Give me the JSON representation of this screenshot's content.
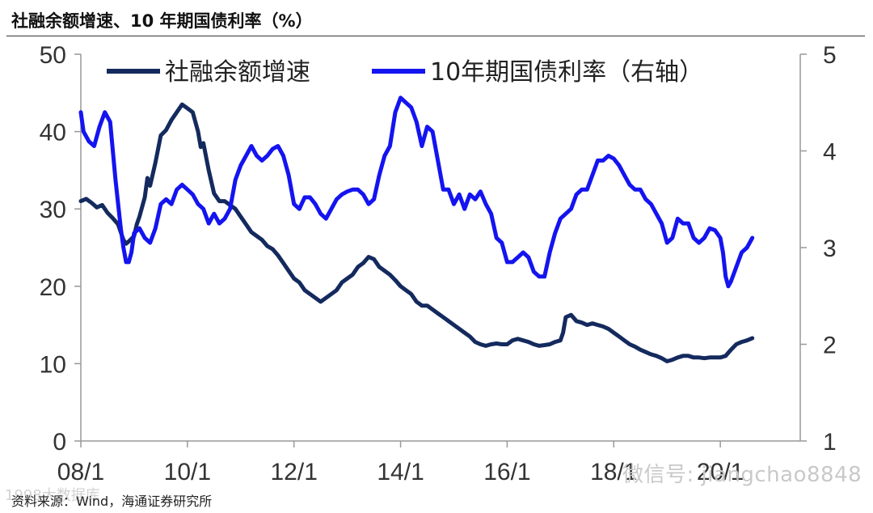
{
  "title": "社融余额增速、10 年期国债利率（%）",
  "source": "资料来源：Wind，海通证券研究所",
  "watermark": "微信号: jiangchao8848",
  "watermark_left": "1998大数据库",
  "colors": {
    "series1": "#142a5e",
    "series2": "#1414f0",
    "axis": "#999999"
  },
  "chart_data": {
    "type": "line",
    "title": "社融余额增速、10 年期国债利率（%）",
    "xlabel": "",
    "ylabel": "",
    "x_range": [
      2008.0,
      2021.5
    ],
    "x_ticks": [
      {
        "label": "08/1",
        "x": 2008.0
      },
      {
        "label": "10/1",
        "x": 2010.0
      },
      {
        "label": "12/1",
        "x": 2012.0
      },
      {
        "label": "14/1",
        "x": 2014.0
      },
      {
        "label": "16/1",
        "x": 2016.0
      },
      {
        "label": "18/1",
        "x": 2018.0
      },
      {
        "label": "20/1",
        "x": 2020.0
      }
    ],
    "ylim_left": [
      0,
      50
    ],
    "yticks_left": [
      0,
      10,
      20,
      30,
      40,
      50
    ],
    "ylim_right": [
      1,
      5
    ],
    "yticks_right": [
      1,
      2,
      3,
      4,
      5
    ],
    "legend_position": "top",
    "grid": false,
    "series": [
      {
        "name": "社融余额增速",
        "axis": "left",
        "points": [
          [
            2008.0,
            31.0
          ],
          [
            2008.1,
            31.3
          ],
          [
            2008.2,
            30.8
          ],
          [
            2008.3,
            30.2
          ],
          [
            2008.4,
            30.5
          ],
          [
            2008.5,
            29.5
          ],
          [
            2008.6,
            28.8
          ],
          [
            2008.7,
            28.0
          ],
          [
            2008.75,
            27.0
          ],
          [
            2008.8,
            26.0
          ],
          [
            2008.85,
            25.5
          ],
          [
            2008.9,
            25.8
          ],
          [
            2009.0,
            26.5
          ],
          [
            2009.05,
            28.0
          ],
          [
            2009.1,
            29.0
          ],
          [
            2009.2,
            31.5
          ],
          [
            2009.25,
            34.0
          ],
          [
            2009.3,
            33.0
          ],
          [
            2009.4,
            36.0
          ],
          [
            2009.5,
            39.5
          ],
          [
            2009.6,
            40.2
          ],
          [
            2009.7,
            41.5
          ],
          [
            2009.8,
            42.5
          ],
          [
            2009.9,
            43.5
          ],
          [
            2010.0,
            43.0
          ],
          [
            2010.1,
            42.5
          ],
          [
            2010.2,
            40.0
          ],
          [
            2010.25,
            38.0
          ],
          [
            2010.3,
            38.5
          ],
          [
            2010.4,
            35.0
          ],
          [
            2010.5,
            32.0
          ],
          [
            2010.6,
            31.0
          ],
          [
            2010.7,
            31.0
          ],
          [
            2010.8,
            30.5
          ],
          [
            2010.9,
            30.0
          ],
          [
            2011.0,
            29.0
          ],
          [
            2011.1,
            28.0
          ],
          [
            2011.2,
            27.0
          ],
          [
            2011.3,
            26.5
          ],
          [
            2011.4,
            26.0
          ],
          [
            2011.5,
            25.2
          ],
          [
            2011.6,
            24.8
          ],
          [
            2011.7,
            24.0
          ],
          [
            2011.8,
            23.0
          ],
          [
            2011.9,
            22.0
          ],
          [
            2012.0,
            21.0
          ],
          [
            2012.1,
            20.5
          ],
          [
            2012.2,
            19.5
          ],
          [
            2012.3,
            19.0
          ],
          [
            2012.4,
            18.5
          ],
          [
            2012.5,
            18.0
          ],
          [
            2012.6,
            18.5
          ],
          [
            2012.7,
            19.0
          ],
          [
            2012.8,
            19.5
          ],
          [
            2012.9,
            20.5
          ],
          [
            2013.0,
            21.0
          ],
          [
            2013.1,
            21.5
          ],
          [
            2013.2,
            22.5
          ],
          [
            2013.3,
            23.0
          ],
          [
            2013.4,
            23.8
          ],
          [
            2013.5,
            23.5
          ],
          [
            2013.6,
            22.5
          ],
          [
            2013.7,
            22.0
          ],
          [
            2013.8,
            21.5
          ],
          [
            2013.9,
            20.8
          ],
          [
            2014.0,
            20.0
          ],
          [
            2014.1,
            19.5
          ],
          [
            2014.2,
            19.0
          ],
          [
            2014.3,
            18.0
          ],
          [
            2014.4,
            17.5
          ],
          [
            2014.5,
            17.5
          ],
          [
            2014.6,
            17.0
          ],
          [
            2014.7,
            16.5
          ],
          [
            2014.8,
            16.0
          ],
          [
            2014.9,
            15.5
          ],
          [
            2015.0,
            15.0
          ],
          [
            2015.1,
            14.5
          ],
          [
            2015.2,
            14.0
          ],
          [
            2015.3,
            13.5
          ],
          [
            2015.4,
            12.8
          ],
          [
            2015.5,
            12.5
          ],
          [
            2015.6,
            12.3
          ],
          [
            2015.7,
            12.5
          ],
          [
            2015.8,
            12.6
          ],
          [
            2015.9,
            12.5
          ],
          [
            2016.0,
            12.5
          ],
          [
            2016.1,
            13.0
          ],
          [
            2016.2,
            13.2
          ],
          [
            2016.3,
            13.0
          ],
          [
            2016.4,
            12.8
          ],
          [
            2016.5,
            12.5
          ],
          [
            2016.6,
            12.3
          ],
          [
            2016.7,
            12.4
          ],
          [
            2016.8,
            12.5
          ],
          [
            2016.9,
            12.8
          ],
          [
            2017.0,
            13.0
          ],
          [
            2017.05,
            14.0
          ],
          [
            2017.1,
            16.0
          ],
          [
            2017.2,
            16.3
          ],
          [
            2017.3,
            15.5
          ],
          [
            2017.4,
            15.3
          ],
          [
            2017.5,
            15.0
          ],
          [
            2017.6,
            15.2
          ],
          [
            2017.7,
            15.0
          ],
          [
            2017.8,
            14.8
          ],
          [
            2017.9,
            14.5
          ],
          [
            2018.0,
            14.0
          ],
          [
            2018.1,
            13.5
          ],
          [
            2018.2,
            13.0
          ],
          [
            2018.3,
            12.5
          ],
          [
            2018.4,
            12.2
          ],
          [
            2018.5,
            11.8
          ],
          [
            2018.6,
            11.5
          ],
          [
            2018.7,
            11.2
          ],
          [
            2018.8,
            11.0
          ],
          [
            2018.9,
            10.7
          ],
          [
            2019.0,
            10.3
          ],
          [
            2019.1,
            10.5
          ],
          [
            2019.2,
            10.8
          ],
          [
            2019.3,
            11.0
          ],
          [
            2019.4,
            11.0
          ],
          [
            2019.5,
            10.8
          ],
          [
            2019.6,
            10.8
          ],
          [
            2019.7,
            10.7
          ],
          [
            2019.8,
            10.8
          ],
          [
            2019.9,
            10.8
          ],
          [
            2020.0,
            10.8
          ],
          [
            2020.1,
            11.0
          ],
          [
            2020.2,
            11.8
          ],
          [
            2020.3,
            12.5
          ],
          [
            2020.4,
            12.8
          ],
          [
            2020.5,
            13.0
          ],
          [
            2020.6,
            13.3
          ]
        ]
      },
      {
        "name": "10年期国债利率（右轴）",
        "axis": "right",
        "points": [
          [
            2008.0,
            4.4
          ],
          [
            2008.05,
            4.2
          ],
          [
            2008.15,
            4.1
          ],
          [
            2008.25,
            4.05
          ],
          [
            2008.35,
            4.25
          ],
          [
            2008.45,
            4.4
          ],
          [
            2008.55,
            4.3
          ],
          [
            2008.65,
            3.7
          ],
          [
            2008.75,
            3.2
          ],
          [
            2008.8,
            3.0
          ],
          [
            2008.85,
            2.85
          ],
          [
            2008.9,
            2.85
          ],
          [
            2008.95,
            2.95
          ],
          [
            2009.0,
            3.15
          ],
          [
            2009.1,
            3.2
          ],
          [
            2009.2,
            3.1
          ],
          [
            2009.3,
            3.05
          ],
          [
            2009.4,
            3.2
          ],
          [
            2009.5,
            3.45
          ],
          [
            2009.6,
            3.5
          ],
          [
            2009.7,
            3.45
          ],
          [
            2009.8,
            3.6
          ],
          [
            2009.9,
            3.65
          ],
          [
            2010.0,
            3.6
          ],
          [
            2010.1,
            3.55
          ],
          [
            2010.2,
            3.45
          ],
          [
            2010.3,
            3.4
          ],
          [
            2010.4,
            3.25
          ],
          [
            2010.5,
            3.35
          ],
          [
            2010.6,
            3.25
          ],
          [
            2010.7,
            3.3
          ],
          [
            2010.8,
            3.4
          ],
          [
            2010.9,
            3.7
          ],
          [
            2011.0,
            3.85
          ],
          [
            2011.1,
            3.95
          ],
          [
            2011.2,
            4.05
          ],
          [
            2011.3,
            3.95
          ],
          [
            2011.4,
            3.9
          ],
          [
            2011.5,
            3.95
          ],
          [
            2011.6,
            4.02
          ],
          [
            2011.7,
            4.05
          ],
          [
            2011.8,
            3.95
          ],
          [
            2011.9,
            3.75
          ],
          [
            2012.0,
            3.45
          ],
          [
            2012.1,
            3.4
          ],
          [
            2012.2,
            3.52
          ],
          [
            2012.3,
            3.52
          ],
          [
            2012.4,
            3.45
          ],
          [
            2012.5,
            3.35
          ],
          [
            2012.6,
            3.3
          ],
          [
            2012.7,
            3.4
          ],
          [
            2012.8,
            3.5
          ],
          [
            2012.9,
            3.55
          ],
          [
            2013.0,
            3.58
          ],
          [
            2013.1,
            3.6
          ],
          [
            2013.2,
            3.6
          ],
          [
            2013.3,
            3.55
          ],
          [
            2013.4,
            3.45
          ],
          [
            2013.5,
            3.5
          ],
          [
            2013.6,
            3.75
          ],
          [
            2013.7,
            3.95
          ],
          [
            2013.8,
            4.05
          ],
          [
            2013.9,
            4.4
          ],
          [
            2014.0,
            4.55
          ],
          [
            2014.1,
            4.5
          ],
          [
            2014.2,
            4.45
          ],
          [
            2014.3,
            4.3
          ],
          [
            2014.4,
            4.05
          ],
          [
            2014.5,
            4.25
          ],
          [
            2014.6,
            4.2
          ],
          [
            2014.7,
            3.9
          ],
          [
            2014.8,
            3.6
          ],
          [
            2014.9,
            3.6
          ],
          [
            2015.0,
            3.45
          ],
          [
            2015.1,
            3.55
          ],
          [
            2015.2,
            3.4
          ],
          [
            2015.3,
            3.55
          ],
          [
            2015.4,
            3.5
          ],
          [
            2015.5,
            3.58
          ],
          [
            2015.6,
            3.45
          ],
          [
            2015.7,
            3.35
          ],
          [
            2015.8,
            3.1
          ],
          [
            2015.9,
            3.05
          ],
          [
            2016.0,
            2.85
          ],
          [
            2016.1,
            2.85
          ],
          [
            2016.2,
            2.9
          ],
          [
            2016.3,
            2.95
          ],
          [
            2016.4,
            2.9
          ],
          [
            2016.5,
            2.75
          ],
          [
            2016.6,
            2.7
          ],
          [
            2016.7,
            2.7
          ],
          [
            2016.8,
            2.95
          ],
          [
            2016.9,
            3.15
          ],
          [
            2017.0,
            3.3
          ],
          [
            2017.1,
            3.35
          ],
          [
            2017.2,
            3.4
          ],
          [
            2017.3,
            3.55
          ],
          [
            2017.4,
            3.6
          ],
          [
            2017.5,
            3.6
          ],
          [
            2017.6,
            3.75
          ],
          [
            2017.7,
            3.9
          ],
          [
            2017.8,
            3.9
          ],
          [
            2017.9,
            3.95
          ],
          [
            2018.0,
            3.92
          ],
          [
            2018.1,
            3.85
          ],
          [
            2018.2,
            3.75
          ],
          [
            2018.3,
            3.65
          ],
          [
            2018.4,
            3.6
          ],
          [
            2018.5,
            3.6
          ],
          [
            2018.6,
            3.5
          ],
          [
            2018.7,
            3.45
          ],
          [
            2018.8,
            3.35
          ],
          [
            2018.9,
            3.25
          ],
          [
            2019.0,
            3.05
          ],
          [
            2019.1,
            3.1
          ],
          [
            2019.2,
            3.3
          ],
          [
            2019.3,
            3.25
          ],
          [
            2019.4,
            3.25
          ],
          [
            2019.5,
            3.1
          ],
          [
            2019.6,
            3.05
          ],
          [
            2019.7,
            3.1
          ],
          [
            2019.8,
            3.2
          ],
          [
            2019.9,
            3.18
          ],
          [
            2020.0,
            3.1
          ],
          [
            2020.05,
            2.95
          ],
          [
            2020.1,
            2.7
          ],
          [
            2020.15,
            2.6
          ],
          [
            2020.2,
            2.65
          ],
          [
            2020.3,
            2.8
          ],
          [
            2020.4,
            2.95
          ],
          [
            2020.5,
            3.0
          ],
          [
            2020.6,
            3.1
          ]
        ]
      }
    ]
  }
}
